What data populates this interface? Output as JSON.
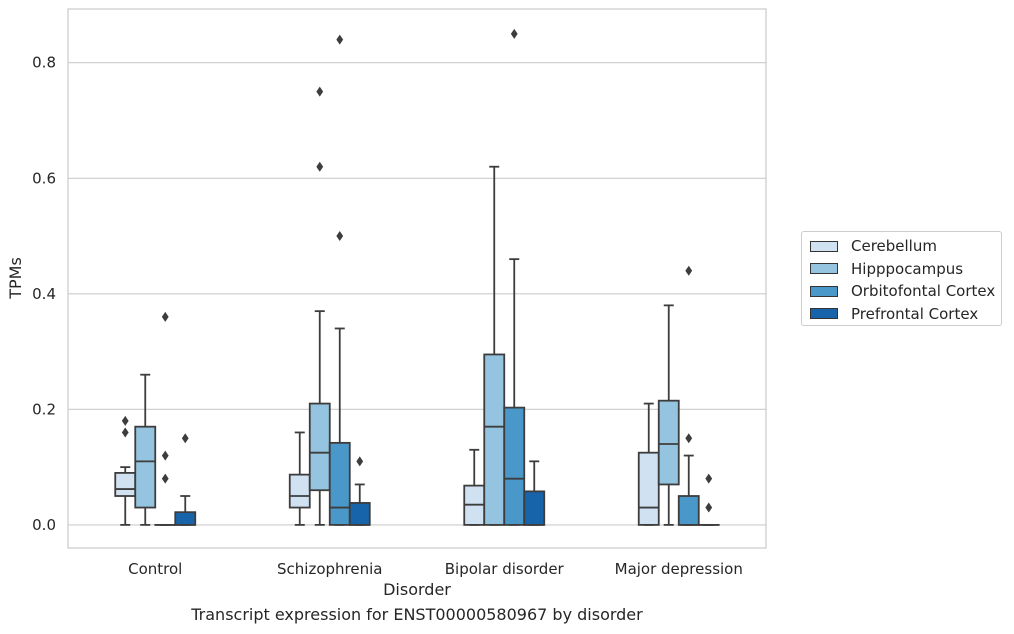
{
  "chart_data": {
    "type": "box",
    "caption": "Transcript expression for ENST00000580967 by disorder",
    "xlabel": "Disorder",
    "ylabel": "TPMs",
    "ylim": [
      -0.04,
      0.893
    ],
    "yticks": [
      0.0,
      0.2,
      0.4,
      0.6,
      0.8
    ],
    "ytick_labels": [
      "0.0",
      "0.2",
      "0.4",
      "0.6",
      "0.8"
    ],
    "grid": true,
    "legend_position": "right",
    "categories": [
      "Control",
      "Schizophrenia",
      "Bipolar disorder",
      "Major depression"
    ],
    "series": [
      {
        "name": "Cerebellum",
        "color": "#d0e1f2",
        "boxes": [
          {
            "whislo": 0.0,
            "q1": 0.05,
            "med": 0.062,
            "q3": 0.09,
            "whishi": 0.1,
            "fliers": [
              0.16,
              0.18
            ]
          },
          {
            "whislo": 0.0,
            "q1": 0.03,
            "med": 0.05,
            "q3": 0.087,
            "whishi": 0.16,
            "fliers": []
          },
          {
            "whislo": 0.0,
            "q1": 0.0,
            "med": 0.035,
            "q3": 0.068,
            "whishi": 0.13,
            "fliers": []
          },
          {
            "whislo": 0.0,
            "q1": 0.0,
            "med": 0.03,
            "q3": 0.125,
            "whishi": 0.21,
            "fliers": []
          }
        ]
      },
      {
        "name": "Hipppocampus",
        "color": "#94c4df",
        "boxes": [
          {
            "whislo": 0.0,
            "q1": 0.03,
            "med": 0.11,
            "q3": 0.17,
            "whishi": 0.26,
            "fliers": []
          },
          {
            "whislo": 0.0,
            "q1": 0.06,
            "med": 0.125,
            "q3": 0.21,
            "whishi": 0.37,
            "fliers": [
              0.62,
              0.75
            ]
          },
          {
            "whislo": 0.0,
            "q1": 0.0,
            "med": 0.17,
            "q3": 0.295,
            "whishi": 0.62,
            "fliers": []
          },
          {
            "whislo": 0.0,
            "q1": 0.07,
            "med": 0.14,
            "q3": 0.215,
            "whishi": 0.38,
            "fliers": []
          }
        ]
      },
      {
        "name": "Orbitofontal Cortex",
        "color": "#4a98c9",
        "boxes": [
          {
            "whislo": 0.0,
            "q1": 0.0,
            "med": 0.0,
            "q3": 0.0,
            "whishi": 0.0,
            "fliers": [
              0.08,
              0.12,
              0.36
            ]
          },
          {
            "whislo": 0.0,
            "q1": 0.0,
            "med": 0.03,
            "q3": 0.142,
            "whishi": 0.34,
            "fliers": [
              0.5,
              0.84
            ]
          },
          {
            "whislo": 0.0,
            "q1": 0.0,
            "med": 0.08,
            "q3": 0.203,
            "whishi": 0.46,
            "fliers": [
              0.85
            ]
          },
          {
            "whislo": 0.0,
            "q1": 0.0,
            "med": 0.0,
            "q3": 0.05,
            "whishi": 0.12,
            "fliers": [
              0.15,
              0.44
            ]
          }
        ]
      },
      {
        "name": "Prefrontal Cortex",
        "color": "#1764ab",
        "boxes": [
          {
            "whislo": 0.0,
            "q1": 0.0,
            "med": 0.0,
            "q3": 0.022,
            "whishi": 0.05,
            "fliers": [
              0.15
            ]
          },
          {
            "whislo": 0.0,
            "q1": 0.0,
            "med": 0.0,
            "q3": 0.038,
            "whishi": 0.07,
            "fliers": [
              0.11
            ]
          },
          {
            "whislo": 0.0,
            "q1": 0.0,
            "med": 0.0,
            "q3": 0.058,
            "whishi": 0.11,
            "fliers": []
          },
          {
            "whislo": 0.0,
            "q1": 0.0,
            "med": 0.0,
            "q3": 0.0,
            "whishi": 0.0,
            "fliers": [
              0.03,
              0.08
            ]
          }
        ]
      }
    ]
  }
}
